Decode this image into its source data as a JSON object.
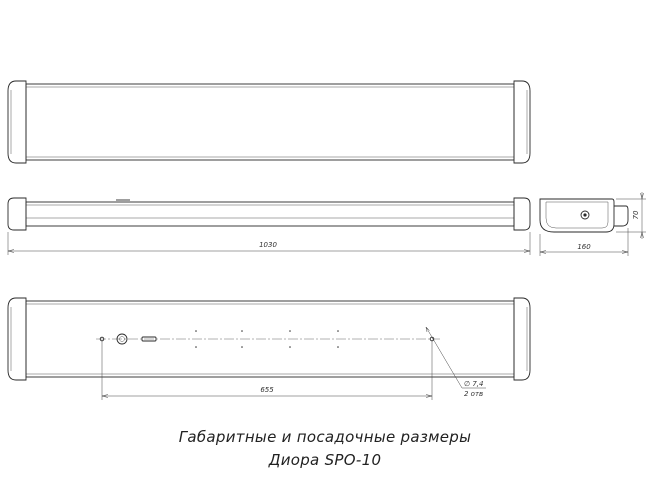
{
  "dimensions": {
    "length": "1030",
    "width": "160",
    "height": "70",
    "mount_distance": "655",
    "hole_diameter": "∅ 7,4",
    "hole_count": "2 отв"
  },
  "caption": {
    "line1": "Габаритные и посадочные размеры",
    "line2": "Диора SPO-10"
  }
}
